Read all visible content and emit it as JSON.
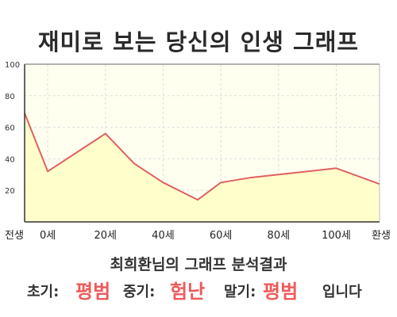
{
  "title": "재미로 보는 당신의 인생 그래프",
  "chart_data": {
    "type": "area",
    "x": [
      -8,
      0,
      20,
      30,
      40,
      52,
      60,
      70,
      80,
      100,
      115
    ],
    "x_tick_values": [
      -8,
      0,
      20,
      40,
      60,
      80,
      100,
      115
    ],
    "x_tick_labels": [
      "전생",
      "0세",
      "20세",
      "40세",
      "60세",
      "80세",
      "100세",
      "환생"
    ],
    "y": [
      69,
      32,
      56,
      37,
      25,
      14,
      25,
      28,
      30,
      34,
      24
    ],
    "ylim": [
      0,
      100
    ],
    "y_ticks": [
      20,
      40,
      60,
      80,
      100
    ],
    "grid": true,
    "colors": {
      "line": "#e06060",
      "fill": "#ffffc8",
      "plot_bg": "#fffff0",
      "grid": "#dddddd"
    }
  },
  "analysis": {
    "title": "최희환님의 그래프 분석결과",
    "early_label": "초기:",
    "early_value": "평범",
    "mid_label": "중기:",
    "mid_value": "험난",
    "late_label": "말기:",
    "late_value": "평범",
    "suffix": "입니다",
    "value_color": "#ee5a5a"
  }
}
